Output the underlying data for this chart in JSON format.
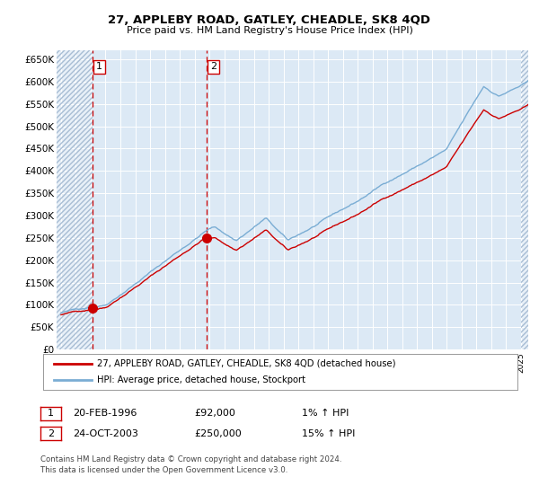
{
  "title": "27, APPLEBY ROAD, GATLEY, CHEADLE, SK8 4QD",
  "subtitle": "Price paid vs. HM Land Registry's House Price Index (HPI)",
  "ylim": [
    0,
    670000
  ],
  "yticks": [
    0,
    50000,
    100000,
    150000,
    200000,
    250000,
    300000,
    350000,
    400000,
    450000,
    500000,
    550000,
    600000,
    650000
  ],
  "xlim_start": 1993.7,
  "xlim_end": 2025.5,
  "plot_bg_color": "#dce9f5",
  "grid_color": "#ffffff",
  "sale1_year": 1996.13,
  "sale1_price": 92000,
  "sale2_year": 2003.81,
  "sale2_price": 250000,
  "legend_line1": "27, APPLEBY ROAD, GATLEY, CHEADLE, SK8 4QD (detached house)",
  "legend_line2": "HPI: Average price, detached house, Stockport",
  "table_row1": [
    "1",
    "20-FEB-1996",
    "£92,000",
    "1% ↑ HPI"
  ],
  "table_row2": [
    "2",
    "24-OCT-2003",
    "£250,000",
    "15% ↑ HPI"
  ],
  "footer": "Contains HM Land Registry data © Crown copyright and database right 2024.\nThis data is licensed under the Open Government Licence v3.0.",
  "red_color": "#cc0000",
  "blue_color": "#7aadd4"
}
